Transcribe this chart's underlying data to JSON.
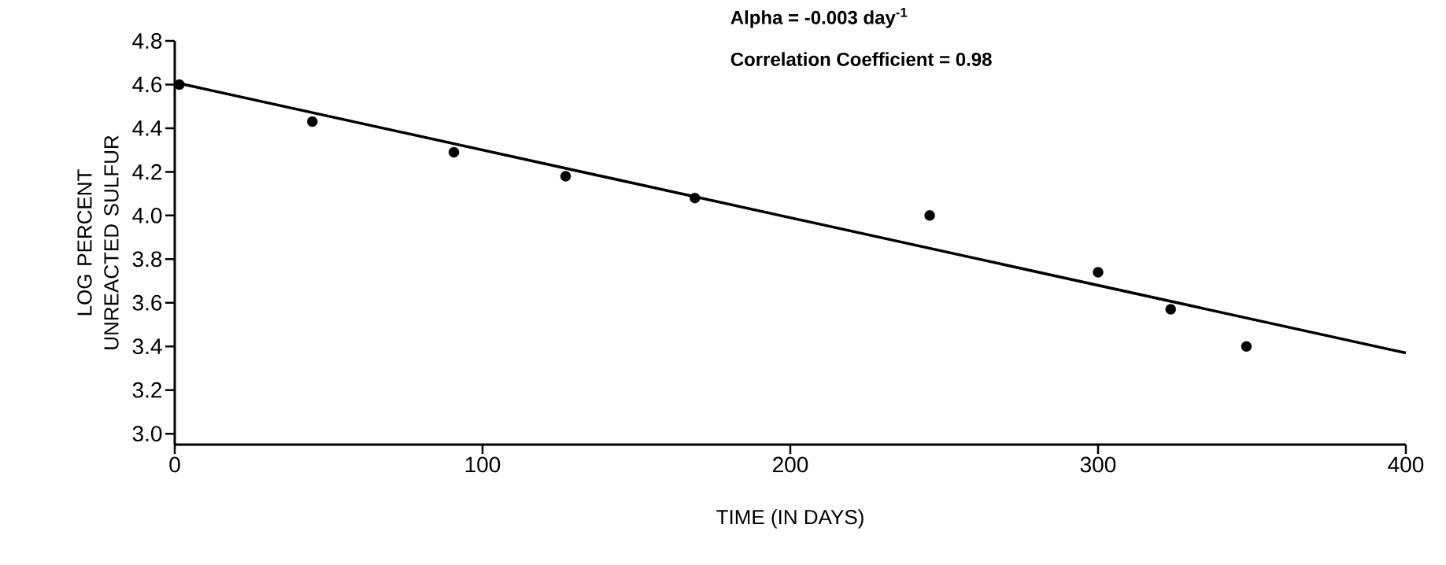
{
  "chart_data": {
    "type": "scatter",
    "xlabel": "TIME (IN DAYS)",
    "ylabel": "LOG PERCENT UNREACTED SULFUR",
    "annotations": [
      "Alpha = -0.003 day$^{-1}$",
      "Correlation Coefficient = 0.98"
    ],
    "xlim": [
      0,
      400
    ],
    "xticks": [
      0,
      100,
      200,
      300,
      400
    ],
    "ylim": [
      2.95,
      4.8
    ],
    "yticks": [
      {
        "value": 3.0,
        "label": "3.0"
      },
      {
        "value": 3.2,
        "label": "3.2"
      },
      {
        "value": 3.4,
        "label": "3.4"
      },
      {
        "value": 3.6,
        "label": "3.6"
      },
      {
        "value": 3.8,
        "label": "3.8"
      },
      {
        "value": 4.0,
        "label": "4.0"
      },
      {
        "value": 4.2,
        "label": "4.2"
      },
      {
        "value": 4.4,
        "label": "4.4"
      },
      {
        "value": 4.6,
        "label": "4.6"
      },
      {
        "value": 4.8,
        "label": "4.8"
      }
    ],
    "series": [
      {
        "color": "#000000",
        "marker": "circle",
        "x": [
          1.5,
          44.7,
          90.7,
          127,
          169,
          245.3,
          300,
          323.6,
          348.2
        ],
        "values": [
          4.6,
          4.43,
          4.29,
          4.18,
          4.08,
          4.0,
          3.74,
          3.57,
          3.4
        ]
      },
      {
        "type": "line",
        "color": "#000000",
        "marker": "none",
        "line_style": "solid",
        "x": [
          0,
          400
        ],
        "values": [
          4.61,
          3.37
        ]
      }
    ]
  }
}
